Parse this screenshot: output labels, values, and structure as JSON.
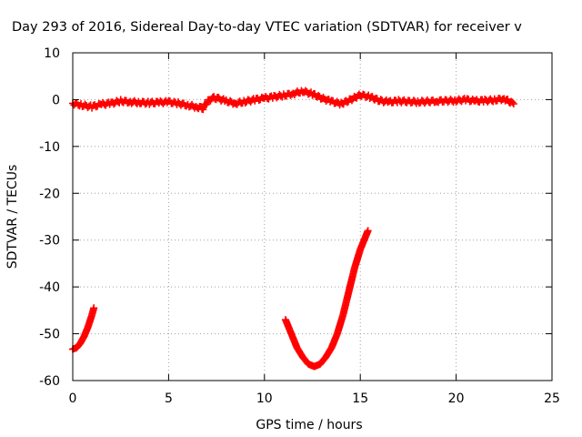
{
  "chart_data": {
    "type": "scatter",
    "title": "Day 293 of 2016, Sidereal Day-to-day VTEC variation (SDTVAR) for receiver v",
    "xlabel": "GPS time / hours",
    "ylabel": "SDTVAR / TECUs",
    "xlim": [
      0,
      25
    ],
    "ylim": [
      -60,
      10
    ],
    "xticks": [
      0,
      5,
      10,
      15,
      20,
      25
    ],
    "yticks": [
      10,
      0,
      -10,
      -20,
      -30,
      -40,
      -50,
      -60
    ],
    "grid": true,
    "marker": "plus",
    "series": [
      {
        "color": "#ff0000",
        "segments": [
          {
            "x": [
              0.0,
              0.5,
              1.0,
              1.5,
              2.0,
              2.5,
              3.0,
              3.5,
              4.0,
              4.5,
              5.0,
              5.5,
              6.0,
              6.5,
              6.8,
              7.0,
              7.3,
              7.6,
              8.0,
              8.5,
              9.0,
              9.5,
              10.0,
              10.5,
              11.0,
              11.5,
              12.0,
              12.5,
              13.0,
              13.5,
              14.0,
              14.5,
              15.0,
              15.5,
              16.0,
              16.5,
              17.0,
              18.0,
              19.0,
              20.0,
              20.5,
              21.0,
              21.5,
              22.0,
              22.5,
              23.0
            ],
            "y": [
              -0.8,
              -1.2,
              -1.5,
              -1.0,
              -0.8,
              -0.3,
              -0.5,
              -0.6,
              -0.7,
              -0.6,
              -0.5,
              -0.8,
              -1.2,
              -1.6,
              -1.8,
              -0.5,
              0.4,
              0.2,
              -0.3,
              -0.8,
              -0.4,
              0.0,
              0.3,
              0.6,
              0.9,
              1.3,
              1.8,
              1.2,
              0.3,
              -0.4,
              -0.9,
              0.0,
              1.0,
              0.6,
              -0.2,
              -0.5,
              -0.3,
              -0.5,
              -0.3,
              -0.2,
              0.0,
              -0.3,
              -0.2,
              -0.1,
              0.2,
              -0.9
            ]
          },
          {
            "x": [
              0.0,
              0.2,
              0.4,
              0.6,
              0.8,
              1.0,
              1.1
            ],
            "y": [
              -53.3,
              -53.0,
              -52.0,
              -50.5,
              -48.5,
              -46.0,
              -44.5
            ]
          },
          {
            "x": [
              11.1,
              11.4,
              11.7,
              12.0,
              12.3,
              12.6,
              12.9,
              13.2,
              13.5,
              13.8,
              14.1,
              14.4,
              14.7,
              15.0,
              15.3,
              15.4
            ],
            "y": [
              -47.0,
              -50.0,
              -53.0,
              -55.0,
              -56.5,
              -57.0,
              -56.5,
              -55.0,
              -53.0,
              -50.0,
              -46.0,
              -41.0,
              -36.0,
              -32.0,
              -29.0,
              -28.0
            ]
          }
        ]
      }
    ]
  }
}
